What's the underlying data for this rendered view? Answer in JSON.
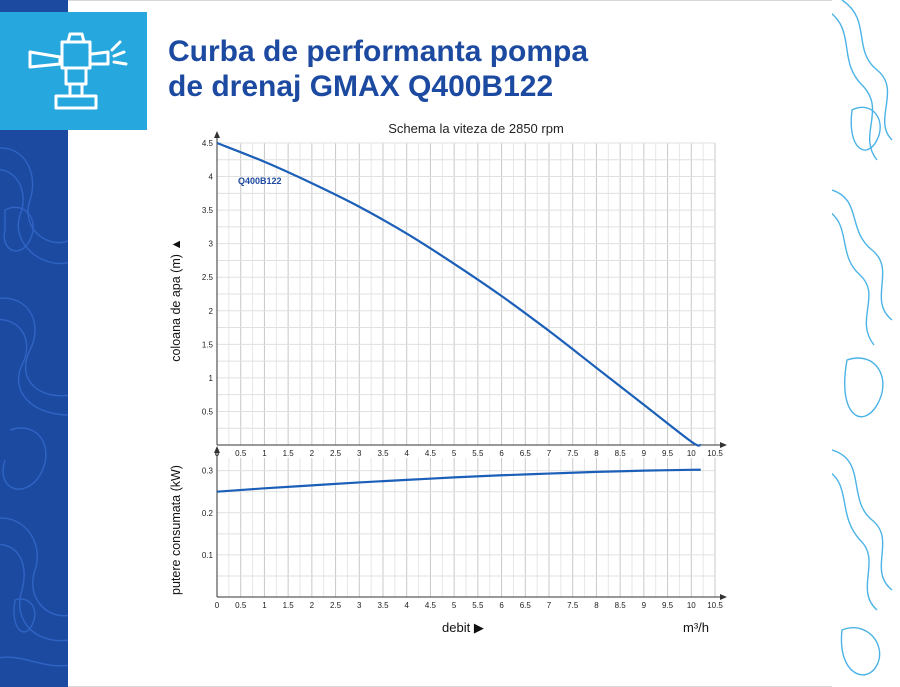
{
  "header": {
    "title_line1": "Curba de performanta pompa",
    "title_line2": "de drenaj GMAX Q400B122",
    "icon": "sprinkler-pump-icon"
  },
  "colors": {
    "brand_blue": "#1d4aa1",
    "accent_cyan": "#26a8df",
    "curve": "#1b5fb8",
    "grid": "#d0d0d0"
  },
  "chart_data": [
    {
      "type": "line",
      "title": "Schema la viteza de 2850 rpm",
      "ylabel": "coloana de apa (m)",
      "xlabel": "",
      "xlim": [
        0,
        10.5
      ],
      "ylim": [
        0,
        4.5
      ],
      "xticks": [
        "0",
        "0.5",
        "1",
        "1.5",
        "2",
        "2.5",
        "3",
        "3.5",
        "4",
        "4.5",
        "5",
        "5.5",
        "6",
        "6.5",
        "7",
        "7.5",
        "8",
        "8.5",
        "9",
        "9.5",
        "10",
        "10.5"
      ],
      "yticks": [
        "0.5",
        "1",
        "1.5",
        "2",
        "2.5",
        "3",
        "3.5",
        "4",
        "4.5"
      ],
      "series": [
        {
          "name": "Q400B122",
          "x": [
            0,
            1,
            2,
            3,
            4,
            5,
            6,
            7,
            8,
            9,
            10,
            10.2
          ],
          "y": [
            4.5,
            4.22,
            3.9,
            3.55,
            3.15,
            2.7,
            2.22,
            1.7,
            1.15,
            0.6,
            0.05,
            0
          ]
        }
      ]
    },
    {
      "type": "line",
      "title": "",
      "ylabel": "putere consumata (kW)",
      "xlabel": "debit",
      "xunit": "m³/h",
      "xlim": [
        0,
        10.5
      ],
      "ylim": [
        0,
        0.33
      ],
      "xticks": [
        "0",
        "0.5",
        "1",
        "1.5",
        "2",
        "2.5",
        "3",
        "3.5",
        "4",
        "4.5",
        "5",
        "5.5",
        "6",
        "6.5",
        "7",
        "7.5",
        "8",
        "8.5",
        "9",
        "9.5",
        "10",
        "10.5"
      ],
      "yticks": [
        "0.1",
        "0.2",
        "0.3"
      ],
      "series": [
        {
          "name": "",
          "x": [
            0,
            1,
            2,
            3,
            4,
            5,
            6,
            7,
            8,
            9,
            10,
            10.2
          ],
          "y": [
            0.25,
            0.258,
            0.265,
            0.272,
            0.278,
            0.284,
            0.289,
            0.293,
            0.297,
            0.3,
            0.302,
            0.302
          ]
        }
      ]
    }
  ]
}
